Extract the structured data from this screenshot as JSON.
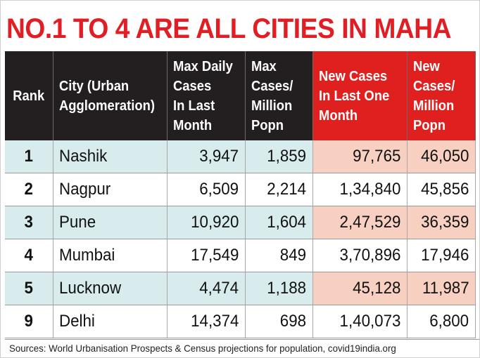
{
  "colors": {
    "headline": "#e01e24",
    "header_dark": "#231f20",
    "header_red": "#e0201f",
    "row_tint": "#d8eced",
    "row_tint_pink": "#f7d0c2"
  },
  "chart_data": {
    "type": "table",
    "title": "NO.1 TO 4 ARE ALL CITIES IN MAHA",
    "columns": [
      "Rank",
      "City (Urban\nAgglomeration)",
      "Max Daily\nCases\nIn Last\nMonth",
      "Max\nCases/\nMillion\nPopn",
      "New Cases\nIn Last One\nMonth",
      "New\nCases/\nMillion\nPopn"
    ],
    "rows": [
      [
        "1",
        "Nashik",
        "3,947",
        "1,859",
        "97,765",
        "46,050"
      ],
      [
        "2",
        "Nagpur",
        "6,509",
        "2,214",
        "1,34,840",
        "45,856"
      ],
      [
        "3",
        "Pune",
        "10,920",
        "1,604",
        "2,47,529",
        "36,359"
      ],
      [
        "4",
        "Mumbai",
        "17,549",
        "849",
        "3,70,896",
        "17,946"
      ],
      [
        "5",
        "Lucknow",
        "4,474",
        "1,188",
        "45,128",
        "11,987"
      ],
      [
        "9",
        "Delhi",
        "14,374",
        "698",
        "1,40,073",
        "6,800"
      ]
    ],
    "highlighted_columns": [
      4,
      5
    ],
    "source": "Sources: World Urbanisation Prospects & Census projections for population, covid19india.org"
  }
}
